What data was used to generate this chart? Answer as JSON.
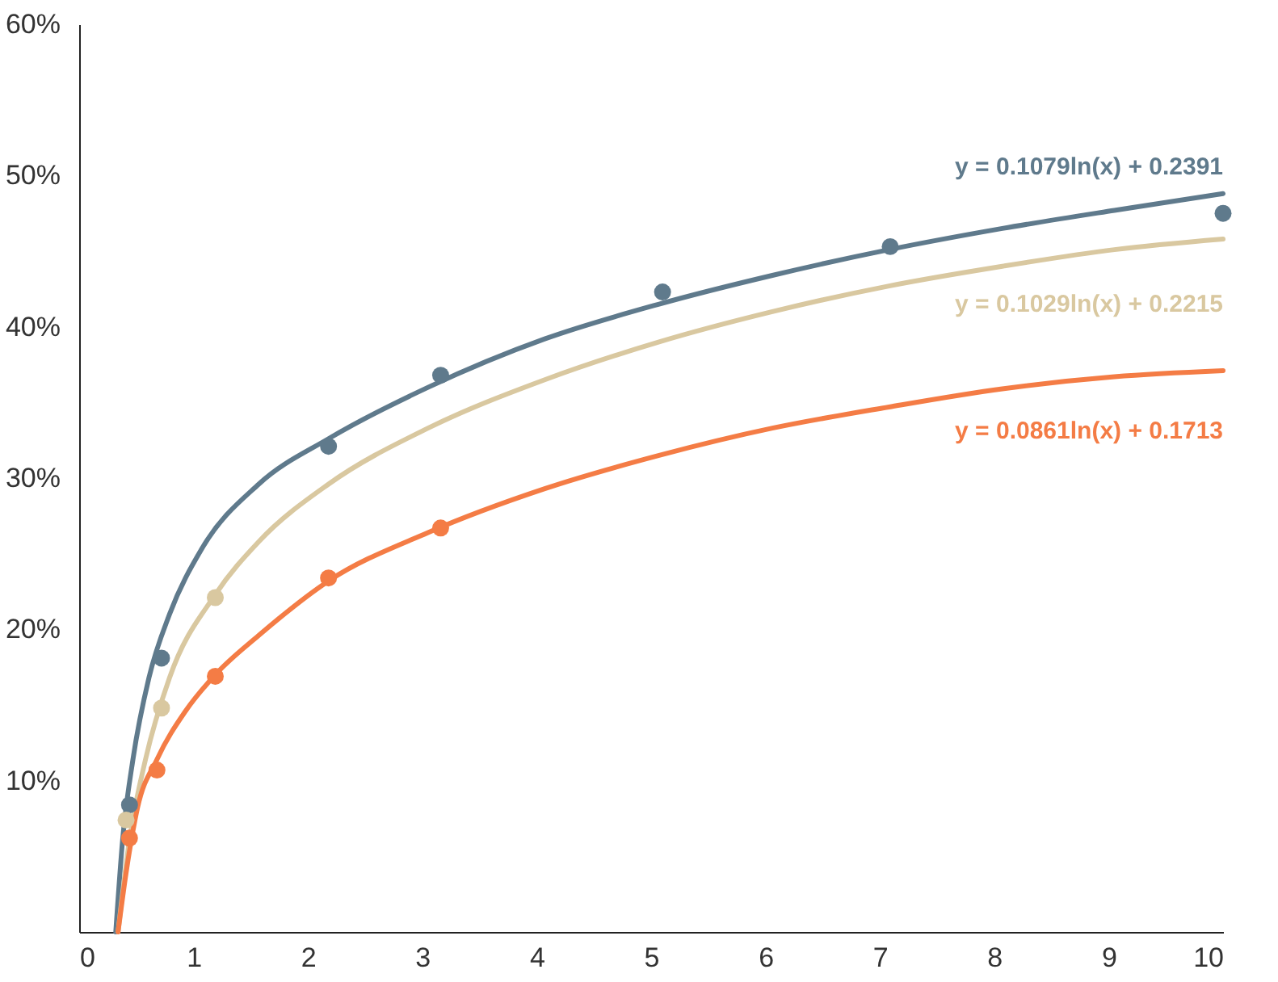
{
  "chart_data": {
    "type": "line",
    "xlim": [
      0,
      10
    ],
    "xticks": [
      0,
      1,
      2,
      3,
      4,
      5,
      6,
      7,
      8,
      9,
      10
    ],
    "ylim": [
      0,
      60
    ],
    "yticks": [
      {
        "value": 10,
        "label": "10%"
      },
      {
        "value": 20,
        "label": "20%"
      },
      {
        "value": 30,
        "label": "30%"
      },
      {
        "value": 40,
        "label": "40%"
      },
      {
        "value": 50,
        "label": "50%"
      },
      {
        "value": 60,
        "label": "60%"
      }
    ],
    "grid": false,
    "series": [
      {
        "color": "#5f7a8c",
        "x": [
          0.32,
          0.38,
          0.47,
          0.61,
          0.79,
          1.07,
          1.57,
          2.18,
          3.05,
          4.07,
          5.07,
          6.06,
          7.08,
          8.07,
          9.05,
          10
        ],
        "values": [
          0,
          6.1,
          11.4,
          16.8,
          21.0,
          25.3,
          29.6,
          32.6,
          36.0,
          39.2,
          41.5,
          43.4,
          45.1,
          46.5,
          47.7,
          48.8
        ]
      },
      {
        "color": "#d9c8a0",
        "x": [
          0.34,
          0.44,
          0.58,
          0.79,
          1.19,
          1.57,
          2.18,
          3.05,
          4.07,
          5.07,
          6.06,
          7.08,
          8.07,
          9.05,
          10
        ],
        "values": [
          0,
          6.1,
          11.4,
          16.8,
          22.3,
          25.8,
          29.6,
          33.3,
          36.5,
          39.0,
          41.0,
          42.7,
          44.0,
          45.1,
          45.8
        ]
      },
      {
        "color": "#f47c45",
        "x": [
          0.34,
          0.41,
          0.51,
          0.68,
          0.93,
          1.19,
          1.57,
          2.18,
          3.05,
          4.07,
          5.07,
          6.06,
          7.08,
          8.07,
          9.05,
          10
        ],
        "values": [
          0,
          3.9,
          8.2,
          11.4,
          14.6,
          17.0,
          19.6,
          23.2,
          26.4,
          29.3,
          31.5,
          33.3,
          34.7,
          35.9,
          36.7,
          37.1
        ]
      },
      {
        "type": "scatter",
        "marker": "circle",
        "color": "#5f7a8c",
        "x": [
          0.44,
          0.72,
          2.18,
          3.16,
          5.1,
          7.09,
          10
        ],
        "values": [
          8.4,
          18.1,
          32.1,
          36.8,
          42.3,
          45.3,
          47.5
        ]
      },
      {
        "type": "scatter",
        "marker": "circle",
        "color": "#d9c8a0",
        "x": [
          0.41,
          0.72,
          1.19
        ],
        "values": [
          7.4,
          14.8,
          22.1
        ]
      },
      {
        "type": "scatter",
        "marker": "circle",
        "color": "#f47c45",
        "x": [
          0.44,
          0.68,
          1.19,
          2.18,
          3.16
        ],
        "values": [
          6.2,
          10.7,
          16.9,
          23.4,
          26.7
        ]
      }
    ],
    "annotations": [
      "y = 0.1079ln(x) + 0.2391",
      "y = 0.1029ln(x) + 0.2215",
      "y = 0.0861ln(x) + 0.1713"
    ]
  }
}
